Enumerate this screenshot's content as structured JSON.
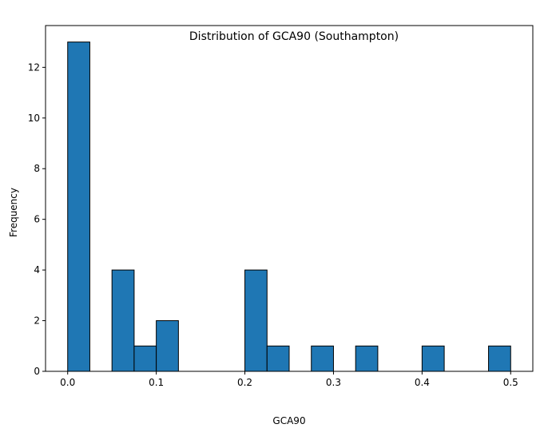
{
  "chart_data": {
    "type": "bar",
    "title": "Distribution of GCA90 (Southampton)",
    "xlabel": "GCA90",
    "ylabel": "Frequency",
    "bins": [
      [
        0.0,
        0.025
      ],
      [
        0.025,
        0.05
      ],
      [
        0.05,
        0.075
      ],
      [
        0.075,
        0.1
      ],
      [
        0.1,
        0.125
      ],
      [
        0.125,
        0.15
      ],
      [
        0.15,
        0.175
      ],
      [
        0.175,
        0.2
      ],
      [
        0.2,
        0.225
      ],
      [
        0.225,
        0.25
      ],
      [
        0.25,
        0.275
      ],
      [
        0.275,
        0.3
      ],
      [
        0.3,
        0.325
      ],
      [
        0.325,
        0.35
      ],
      [
        0.35,
        0.375
      ],
      [
        0.375,
        0.4
      ],
      [
        0.4,
        0.425
      ],
      [
        0.425,
        0.45
      ],
      [
        0.45,
        0.475
      ],
      [
        0.475,
        0.5
      ]
    ],
    "values": [
      13,
      0,
      4,
      1,
      2,
      0,
      0,
      0,
      4,
      1,
      0,
      1,
      0,
      1,
      0,
      0,
      1,
      0,
      0,
      1
    ],
    "xlim": [
      -0.025,
      0.525
    ],
    "ylim": [
      0,
      13.65
    ],
    "xticks": [
      0.0,
      0.1,
      0.2,
      0.3,
      0.4,
      0.5
    ],
    "xtick_labels": [
      "0.0",
      "0.1",
      "0.2",
      "0.3",
      "0.4",
      "0.5"
    ],
    "yticks": [
      0,
      2,
      4,
      6,
      8,
      10,
      12
    ],
    "ytick_labels": [
      "0",
      "2",
      "4",
      "6",
      "8",
      "10",
      "12"
    ],
    "grid": false,
    "legend": "none",
    "bar_color": "#1f77b4",
    "edge_color": "#000000"
  }
}
